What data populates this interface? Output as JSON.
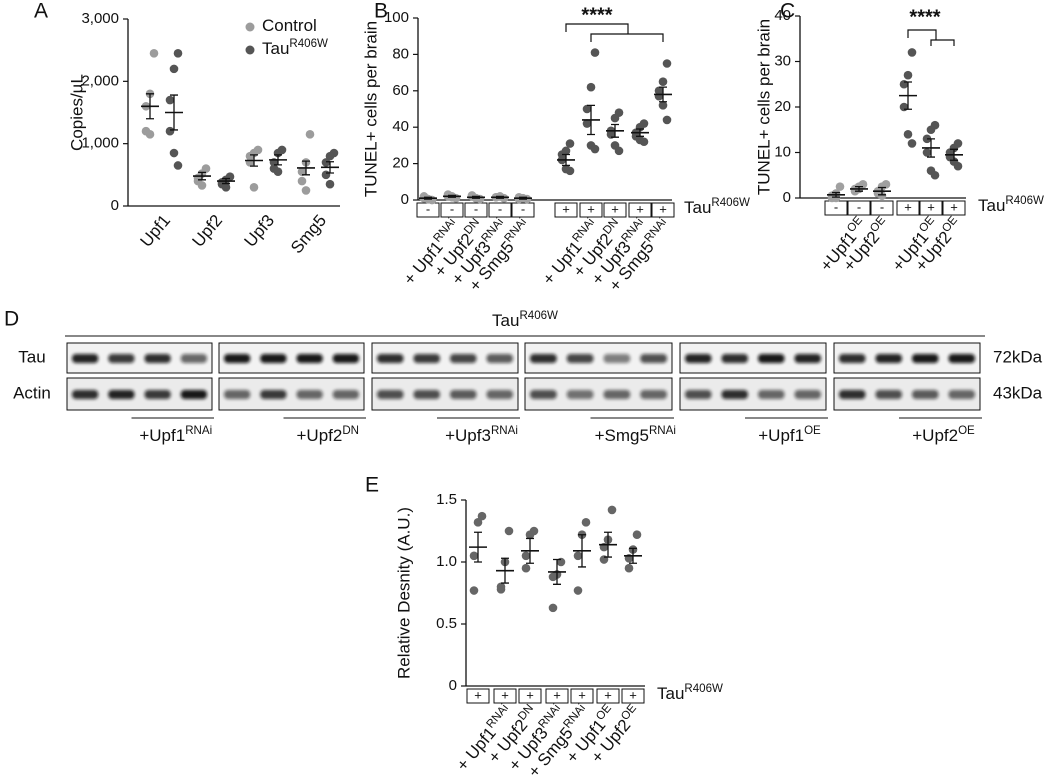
{
  "chart_data": [
    {
      "panel": "A",
      "type": "dot",
      "ylabel": "Copies/µL",
      "ylim": [
        0,
        3000
      ],
      "yticks": [
        0,
        {
          "value": 1000,
          "label": "1,000"
        },
        {
          "value": 2000,
          "label": "2,000"
        },
        {
          "value": 3000,
          "label": "3,000"
        }
      ],
      "categories": [
        "Upf1",
        "Upf2",
        "Upf3",
        "Smg5"
      ],
      "legend": "top-right",
      "series": [
        {
          "name": "Control",
          "color": "#9c9c9c",
          "values": [
            1600,
            480,
            730,
            610
          ],
          "errors": [
            200,
            60,
            90,
            110
          ],
          "points": [
            [
              2450,
              1800,
              1600,
              1200,
              1150
            ],
            [
              600,
              520,
              450,
              400,
              330
            ],
            [
              900,
              850,
              800,
              700,
              300
            ],
            [
              1150,
              700,
              550,
              400,
              250
            ]
          ]
        },
        {
          "name": "Tau",
          "name_sup": "R406W",
          "color": "#555555",
          "values": [
            1500,
            400,
            740,
            620
          ],
          "errors": [
            280,
            40,
            80,
            90
          ],
          "points": [
            [
              2450,
              2200,
              1700,
              1200,
              850,
              650
            ],
            [
              470,
              420,
              380,
              350,
              300
            ],
            [
              900,
              850,
              700,
              600,
              550
            ],
            [
              850,
              800,
              700,
              500,
              350
            ]
          ]
        }
      ]
    },
    {
      "panel": "B",
      "type": "dot",
      "ylabel": "TUNEL+ cells per brain",
      "ylim": [
        0,
        100
      ],
      "yticks": [
        0,
        20,
        40,
        60,
        80,
        100
      ],
      "categories": [
        null,
        "+ Upf1",
        "+ Upf2",
        "+ Upf3",
        "+ Smg5",
        null,
        "+ Upf1",
        "+ Upf2",
        "+ Upf3",
        "+ Smg5"
      ],
      "category_sups": [
        null,
        "RNAi",
        "DN",
        "RNAi",
        "RNAi",
        null,
        "RNAi",
        "DN",
        "RNAi",
        "RNAi"
      ],
      "genotype": [
        "-",
        "-",
        "-",
        "-",
        "-",
        "+",
        "+",
        "+",
        "+",
        "+"
      ],
      "genotype_label": "Tau",
      "genotype_label_sup": "R406W",
      "significance": "****",
      "series": [
        {
          "colors": [
            "#a0a0a0",
            "#a0a0a0",
            "#a0a0a0",
            "#a0a0a0",
            "#a0a0a0",
            "#555555",
            "#555555",
            "#555555",
            "#555555",
            "#555555"
          ],
          "values": [
            1,
            2,
            1.5,
            1.5,
            1,
            22,
            44,
            38,
            37,
            58
          ],
          "errors": [
            0.5,
            0.5,
            0.5,
            0.5,
            0.5,
            3,
            8,
            3.5,
            2,
            4
          ],
          "points": [
            [
              0,
              0.5,
              1,
              2,
              0.5,
              0
            ],
            [
              1,
              2,
              3,
              2,
              1.5
            ],
            [
              0.5,
              1,
              2,
              2.5,
              1
            ],
            [
              1,
              2,
              1.5,
              1.5
            ],
            [
              0.5,
              1,
              1.5,
              0.5
            ],
            [
              31,
              27,
              25,
              22,
              17,
              16
            ],
            [
              81,
              62,
              50,
              42,
              30,
              28
            ],
            [
              48,
              45,
              38,
              36,
              30,
              27
            ],
            [
              42,
              40,
              37,
              35,
              33,
              32
            ],
            [
              75,
              65,
              60,
              57,
              52,
              44
            ]
          ]
        }
      ]
    },
    {
      "panel": "C",
      "type": "dot",
      "ylabel": "TUNEL+ cells per brain",
      "ylim": [
        0,
        40
      ],
      "yticks": [
        0,
        10,
        20,
        30,
        40
      ],
      "categories": [
        null,
        "+Upf1",
        "+Upf2",
        null,
        "+Upf1",
        "+Upf2"
      ],
      "category_sups": [
        null,
        "OE",
        "OE",
        null,
        "OE",
        "OE"
      ],
      "genotype": [
        "-",
        "-",
        "-",
        "+",
        "+",
        "+"
      ],
      "genotype_label": "Tau",
      "genotype_label_sup": "R406W",
      "significance": "****",
      "series": [
        {
          "colors": [
            "#a0a0a0",
            "#a0a0a0",
            "#a0a0a0",
            "#555555",
            "#555555",
            "#555555"
          ],
          "values": [
            0.7,
            2,
            1.5,
            22.5,
            11,
            9.5
          ],
          "errors": [
            0.5,
            0.5,
            0.8,
            3,
            2,
            1.2
          ],
          "points": [
            [
              2.5,
              1,
              0.5,
              0,
              0
            ],
            [
              3,
              2.5,
              2,
              1.5,
              2
            ],
            [
              3,
              2.5,
              1.5,
              1,
              0.5
            ],
            [
              32,
              27,
              25,
              20,
              14,
              12
            ],
            [
              16,
              15,
              13,
              10,
              6,
              5
            ],
            [
              12,
              11,
              10,
              9,
              8,
              7
            ]
          ]
        }
      ]
    },
    {
      "panel": "E",
      "type": "dot",
      "ylabel": "Relative Desnity (A.U.)",
      "ylim": [
        0,
        1.5
      ],
      "yticks": [
        0,
        {
          "value": 0.5,
          "label": "0.5"
        },
        {
          "value": 1,
          "label": "1.0"
        },
        {
          "value": 1.5,
          "label": "1.5"
        }
      ],
      "categories": [
        null,
        "+ Upf1",
        "+ Upf2",
        "+ Upf3",
        "+ Smg5",
        "+ Upf1",
        "+ Upf2"
      ],
      "category_sups": [
        null,
        "RNAi",
        "DN",
        "RNAi",
        "RNAi",
        "OE",
        "OE"
      ],
      "genotype": [
        "+",
        "+",
        "+",
        "+",
        "+",
        "+",
        "+"
      ],
      "genotype_label": "Tau",
      "genotype_label_sup": "R406W",
      "series": [
        {
          "colors": [
            "#666666",
            "#666666",
            "#666666",
            "#666666",
            "#666666",
            "#666666",
            "#666666"
          ],
          "values": [
            1.12,
            0.93,
            1.09,
            0.92,
            1.09,
            1.14,
            1.05
          ],
          "errors": [
            0.12,
            0.1,
            0.1,
            0.1,
            0.13,
            0.1,
            0.06
          ],
          "points": [
            [
              1.37,
              1.32,
              1.05,
              0.77
            ],
            [
              1.25,
              1,
              0.8,
              0.78
            ],
            [
              1.25,
              1.22,
              1.05,
              0.95
            ],
            [
              1,
              0.9,
              0.88,
              0.63
            ],
            [
              1.32,
              1.22,
              1.05,
              0.77
            ],
            [
              1.42,
              1.18,
              1.12,
              1.02
            ],
            [
              1.22,
              1.1,
              1.03,
              0.95
            ]
          ]
        }
      ]
    }
  ],
  "blot": {
    "panel": "D",
    "title": "Tau",
    "title_sup": "R406W",
    "rows": [
      "Tau",
      "Actin"
    ],
    "sizes": [
      "72kDa",
      "43kDa"
    ],
    "groups": [
      {
        "name": "+Upf1",
        "sup": "RNAi"
      },
      {
        "name": "+Upf2",
        "sup": "DN"
      },
      {
        "name": "+Upf3",
        "sup": "RNAi"
      },
      {
        "name": "+Smg5",
        "sup": "RNAi"
      },
      {
        "name": "+Upf1",
        "sup": "OE"
      },
      {
        "name": "+Upf2",
        "sup": "OE"
      }
    ]
  }
}
